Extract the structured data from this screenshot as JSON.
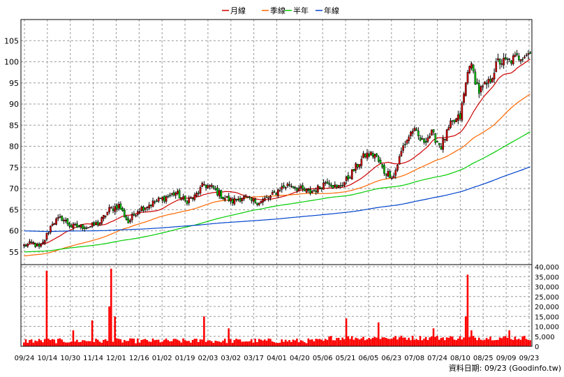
{
  "chart_data": {
    "type": "candlestick",
    "legend": [
      {
        "label": "月線",
        "color": "#cc0000"
      },
      {
        "label": "季線",
        "color": "#ff6600"
      },
      {
        "label": "半年",
        "color": "#00cc00"
      },
      {
        "label": "年線",
        "color": "#0044cc"
      }
    ],
    "price_axis": {
      "ticks": [
        55,
        60,
        65,
        70,
        75,
        80,
        85,
        90,
        95,
        100,
        105
      ],
      "ylim": [
        52,
        110
      ]
    },
    "volume_axis": {
      "tick_labels": [
        "40,000",
        "35,000",
        "30,000",
        "25,000",
        "20,000",
        "15,000",
        "10,000",
        "5,000",
        "0"
      ],
      "ticks": [
        40000,
        35000,
        30000,
        25000,
        20000,
        15000,
        10000,
        5000,
        0
      ],
      "ylim": [
        0,
        40000
      ]
    },
    "x_tick_labels": [
      "09/24",
      "10/14",
      "10/30",
      "11/14",
      "12/01",
      "12/16",
      "01/02",
      "01/19",
      "02/03",
      "03/02",
      "03/17",
      "04/01",
      "04/20",
      "05/06",
      "05/21",
      "06/05",
      "06/23",
      "07/08",
      "07/24",
      "08/10",
      "08/25",
      "09/09",
      "09/23"
    ],
    "close_anchors": [
      [
        0,
        56.5
      ],
      [
        5,
        57
      ],
      [
        8,
        56
      ],
      [
        10,
        57
      ],
      [
        15,
        62
      ],
      [
        20,
        63
      ],
      [
        25,
        61
      ],
      [
        30,
        61
      ],
      [
        35,
        61
      ],
      [
        40,
        62
      ],
      [
        45,
        65
      ],
      [
        50,
        66
      ],
      [
        55,
        62
      ],
      [
        60,
        65
      ],
      [
        65,
        66
      ],
      [
        70,
        67
      ],
      [
        75,
        68
      ],
      [
        80,
        69
      ],
      [
        85,
        67
      ],
      [
        90,
        68
      ],
      [
        95,
        71
      ],
      [
        100,
        70
      ],
      [
        105,
        68
      ],
      [
        110,
        67
      ],
      [
        115,
        68
      ],
      [
        120,
        67
      ],
      [
        125,
        67
      ],
      [
        130,
        68
      ],
      [
        135,
        70
      ],
      [
        140,
        71
      ],
      [
        145,
        70
      ],
      [
        150,
        69
      ],
      [
        155,
        70
      ],
      [
        160,
        72
      ],
      [
        165,
        70
      ],
      [
        170,
        72
      ],
      [
        175,
        75
      ],
      [
        180,
        78
      ],
      [
        185,
        78
      ],
      [
        190,
        74
      ],
      [
        195,
        73
      ],
      [
        200,
        80
      ],
      [
        205,
        84
      ],
      [
        210,
        81
      ],
      [
        215,
        83
      ],
      [
        220,
        80
      ],
      [
        225,
        85
      ],
      [
        230,
        87
      ],
      [
        235,
        100
      ],
      [
        240,
        93
      ],
      [
        245,
        95
      ],
      [
        250,
        100
      ],
      [
        255,
        100
      ],
      [
        260,
        101
      ],
      [
        265,
        102
      ]
    ],
    "volume_spikes": [
      [
        12,
        38000
      ],
      [
        26,
        8000
      ],
      [
        36,
        13000
      ],
      [
        45,
        20000
      ],
      [
        46,
        39000
      ],
      [
        48,
        15000
      ],
      [
        95,
        15000
      ],
      [
        108,
        9000
      ],
      [
        170,
        14000
      ],
      [
        187,
        12000
      ],
      [
        216,
        9000
      ],
      [
        233,
        15000
      ],
      [
        234,
        36000
      ],
      [
        236,
        8000
      ],
      [
        256,
        8000
      ]
    ],
    "source_label": "資料日期: 09/23  (Goodinfo.tw)"
  }
}
